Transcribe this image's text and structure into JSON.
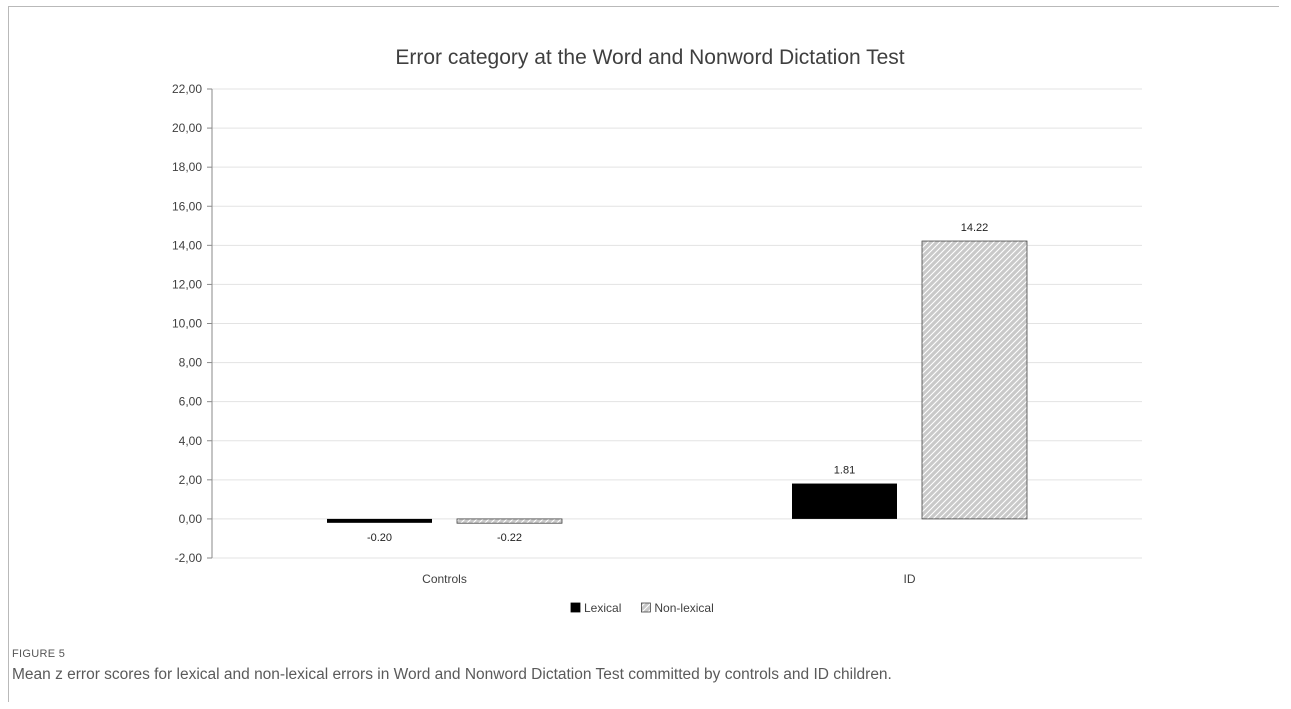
{
  "figure": {
    "label": "FIGURE 5",
    "caption": "Mean z error scores for lexical and non-lexical errors in Word and Nonword Dictation Test committed by controls and ID children."
  },
  "chart_data": {
    "type": "bar",
    "title": "Error category at the Word and Nonword Dictation Test",
    "xlabel": "",
    "ylabel": "",
    "categories": [
      "Controls",
      "ID"
    ],
    "series": [
      {
        "name": "Lexical",
        "values": [
          -0.2,
          1.81
        ],
        "labels": [
          "-0.20",
          "1.81"
        ],
        "color": "#000000",
        "pattern": "solid"
      },
      {
        "name": "Non-lexical",
        "values": [
          -0.22,
          14.22
        ],
        "labels": [
          "-0.22",
          "14.22"
        ],
        "color": "#c8c8c8",
        "pattern": "hatched"
      }
    ],
    "ylim": [
      -2,
      22
    ],
    "yticks": [
      22,
      20,
      18,
      16,
      14,
      12,
      10,
      8,
      6,
      4,
      2,
      0,
      -2
    ],
    "ytick_labels": [
      "22,00",
      "20,00",
      "18,00",
      "16,00",
      "14,00",
      "12,00",
      "10,00",
      "8,00",
      "6,00",
      "4,00",
      "2,00",
      "0,00",
      "-2,00"
    ],
    "grid": true,
    "legend_position": "bottom-center",
    "gridline_color": "#e3e3e3"
  }
}
